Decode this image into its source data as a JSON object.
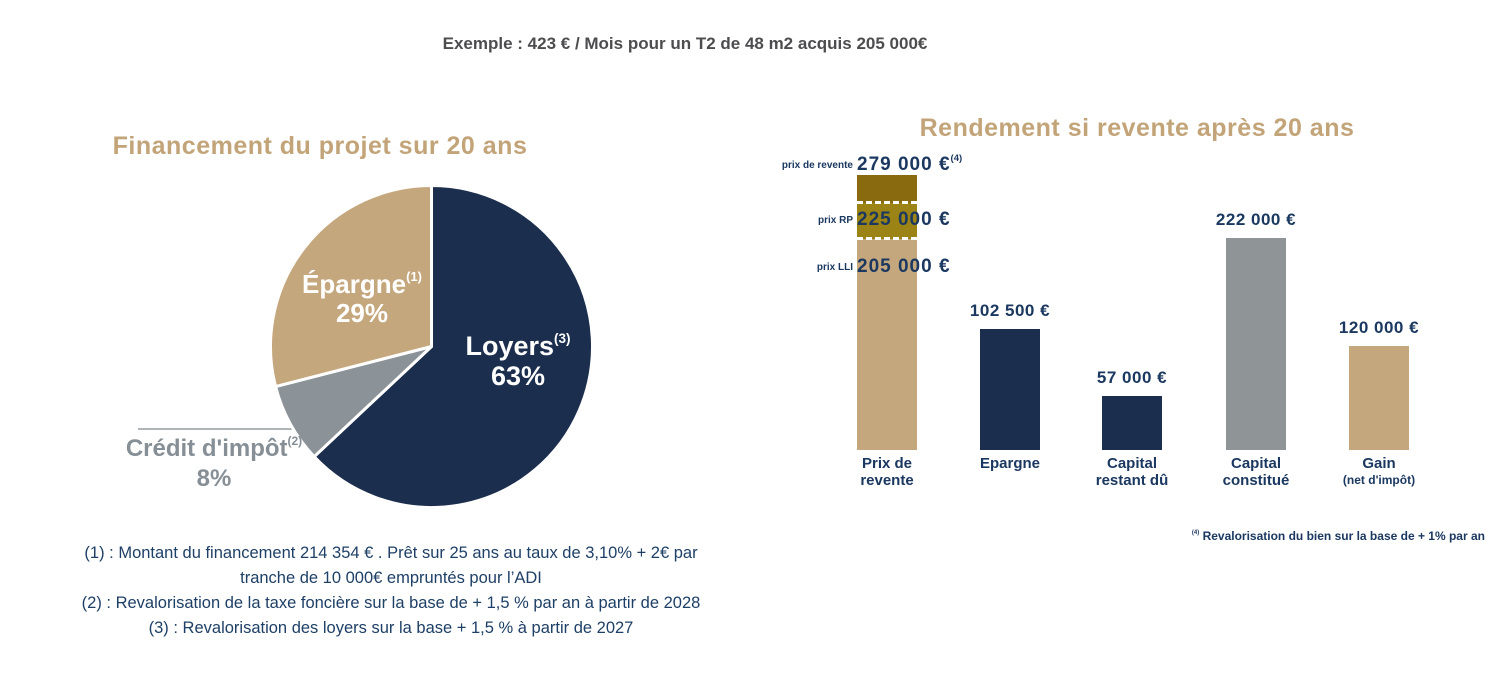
{
  "header": {
    "title": "Exemple : 423 € / Mois pour un T2 de 48 m2 acquis 205 000€"
  },
  "colors": {
    "navy": "#1b2e4d",
    "tan": "#c5a77d",
    "pie_gray": "#8b9298",
    "bar_gray": "#8f9496",
    "dark_gold": "#8a6a0f",
    "olive_gold": "#9c8315",
    "gold_title": "#c2a478",
    "text_navy": "#1b3860",
    "footnote_navy": "#1e3f66",
    "header_gray": "#4d4d4f",
    "outside_label_gray": "#868f96",
    "slice_border": "#ffffff"
  },
  "chart_data": [
    {
      "type": "pie",
      "title": "Financement du projet sur 20 ans",
      "start": "top",
      "direction": "clockwise",
      "legend_position": "inside",
      "slices": [
        {
          "label": "Loyers",
          "ref": "(3)",
          "pct": 63,
          "pct_label": "63%",
          "color": "#1b2e4d",
          "label_position": "inside"
        },
        {
          "label": "Crédit d'impôt",
          "ref": "(2)",
          "pct": 8,
          "pct_label": "8%",
          "color": "#8b9298",
          "label_position": "outside-left"
        },
        {
          "label": "Épargne",
          "ref": "(1)",
          "pct": 29,
          "pct_label": "29%",
          "color": "#c5a77d",
          "label_position": "inside"
        }
      ]
    },
    {
      "type": "bar",
      "title": "Rendement si revente après 20 ans",
      "categories": [
        [
          "Prix de",
          "revente"
        ],
        [
          "Epargne"
        ],
        [
          "Capital",
          "restant dû"
        ],
        [
          "Capital",
          "constitué"
        ],
        [
          "Gain",
          "(net d'impôt)"
        ]
      ],
      "values": [
        279000,
        102500,
        57000,
        222000,
        120000
      ],
      "value_labels": [
        "279 000 €",
        "102 500 €",
        "57 000 €",
        "222 000 €",
        "120 000 €"
      ],
      "bar_colors": [
        "#c5a77d",
        "#1b2e4d",
        "#1b2e4d",
        "#8f9496",
        "#c5a77d"
      ],
      "first_bar_markers": [
        {
          "label": "prix de revente",
          "value": 279000,
          "value_label": "279 000 €",
          "ref": "(4)"
        },
        {
          "label": "prix RP",
          "value": 225000,
          "value_label": "225 000 €",
          "ref": ""
        },
        {
          "label": "prix LLI",
          "value": 205000,
          "value_label": "205 000 €",
          "ref": ""
        }
      ],
      "first_bar_segment_colors_top_to_bottom": [
        "#8a6a0f",
        "#9c8315",
        "#c5a77d"
      ],
      "first_bar_divider_style": "white-dashed",
      "footnote": {
        "ref": "(4)",
        "text": "Revalorisation du bien sur la base de + 1% par an"
      }
    }
  ],
  "footnotes": {
    "lines": [
      "(1) : Montant du financement 214 354 € . Prêt sur 25 ans au taux de 3,10% + 2€ par",
      "tranche de 10 000€ empruntés pour l’ADI",
      "(2) : Revalorisation de la taxe foncière sur la base de + 1,5 % par an à partir de 2028",
      "(3) : Revalorisation des loyers sur la base + 1,5 % à partir de 2027"
    ]
  }
}
